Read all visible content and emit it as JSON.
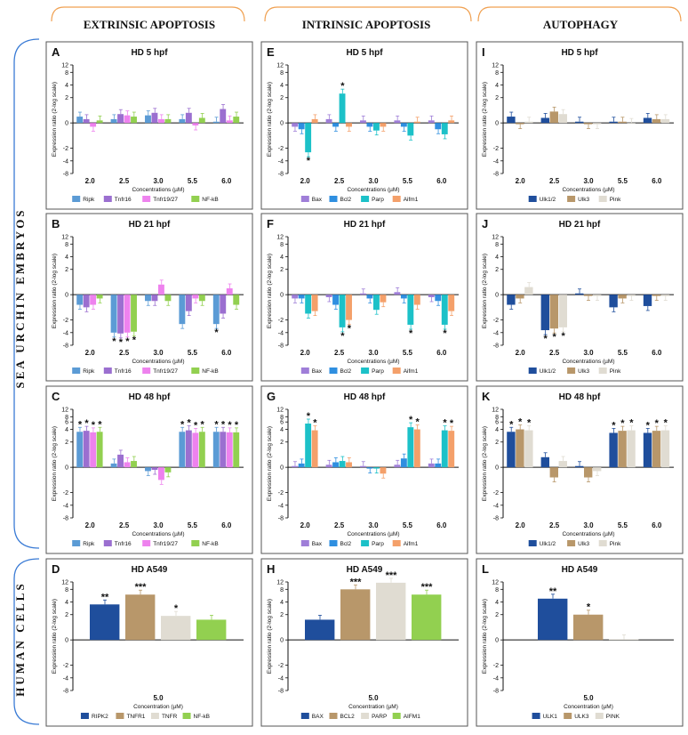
{
  "columns": [
    "EXTRINSIC APOPTOSIS",
    "INTRINSIC APOPTOSIS",
    "AUTOPHAGY"
  ],
  "rows": [
    "SEA URCHIN EMBRYOS",
    "HUMAN CELLS"
  ],
  "colors": {
    "Ripk": "#5b9bd5",
    "Tnfr16": "#9b6fd0",
    "Tnfr19/27": "#ee82ee",
    "NF-kB": "#92d050",
    "Bax": "#9f7ed8",
    "Bcl2": "#2f8fe0",
    "Parp": "#1cc1c8",
    "Aifm1": "#f4a06a",
    "Ulk1/2": "#1f4e9c",
    "Ulk3": "#b8976a",
    "Pink": "#e0dcd2"
  },
  "chart_data": [
    {
      "id": "A",
      "type": "bar",
      "title": "HD 5 hpf",
      "xlabel": "Concentrations (µM)",
      "ylabel": "Expression ratio (2-log scale)",
      "categories": [
        "2.0",
        "2.5",
        "3.0",
        "5.5",
        "6.0"
      ],
      "ylim": [
        -8,
        12
      ],
      "yticks": [
        "12",
        "8",
        "4",
        "2",
        "0",
        "-2",
        "-4",
        "-8"
      ],
      "series": [
        {
          "name": "Ripk",
          "values": [
            0.5,
            0.3,
            0.6,
            0.3,
            0.1
          ]
        },
        {
          "name": "Tnfr16",
          "values": [
            0.3,
            0.7,
            0.8,
            0.8,
            1.1
          ]
        },
        {
          "name": "Tnfr19/27",
          "values": [
            -0.3,
            0.6,
            0.3,
            -0.2,
            0.2
          ]
        },
        {
          "name": "NF-kB",
          "values": [
            0.2,
            0.5,
            0.3,
            0.4,
            0.5
          ]
        }
      ],
      "stars": []
    },
    {
      "id": "E",
      "type": "bar",
      "title": "HD 5 hpf",
      "xlabel": "Concentrations (µM)",
      "ylabel": "Expression ratio (2-log scale)",
      "categories": [
        "2.0",
        "2.5",
        "3.0",
        "5.5",
        "6.0"
      ],
      "ylim": [
        -8,
        12
      ],
      "yticks": [
        "12",
        "8",
        "4",
        "2",
        "0",
        "-2",
        "-4",
        "-8"
      ],
      "series": [
        {
          "name": "Bax",
          "values": [
            -0.3,
            0.3,
            0.2,
            0.2,
            0.2
          ]
        },
        {
          "name": "Bcl2",
          "values": [
            -0.5,
            -0.3,
            -0.3,
            -0.3,
            -0.5
          ]
        },
        {
          "name": "Parp",
          "values": [
            -2.5,
            2.5,
            -0.6,
            -1.0,
            -0.9
          ]
        },
        {
          "name": "Aifm1",
          "values": [
            0.3,
            -0.3,
            -0.3,
            0.1,
            0.2
          ]
        }
      ],
      "stars": [
        {
          "group": 0,
          "series": 2,
          "text": "*"
        },
        {
          "group": 1,
          "series": 2,
          "text": "*"
        }
      ]
    },
    {
      "id": "I",
      "type": "bar",
      "title": "HD 5 hpf",
      "xlabel": "Concentrations (µM)",
      "ylabel": "Expression ratio (2-log scale)",
      "categories": [
        "2.0",
        "2.5",
        "3.0",
        "5.5",
        "6.0"
      ],
      "ylim": [
        -8,
        12
      ],
      "yticks": [
        "12",
        "8",
        "4",
        "2",
        "0",
        "-2",
        "-4",
        "-8"
      ],
      "series": [
        {
          "name": "Ulk1/2",
          "values": [
            0.5,
            0.4,
            0.1,
            0.1,
            0.4
          ]
        },
        {
          "name": "Ulk3",
          "values": [
            -0.1,
            0.9,
            -0.1,
            0.1,
            0.3
          ]
        },
        {
          "name": "Pink",
          "values": [
            0.1,
            0.7,
            -0.1,
            0.0,
            0.3
          ]
        }
      ],
      "stars": []
    },
    {
      "id": "B",
      "type": "bar",
      "title": "HD 21 hpf",
      "xlabel": "Concentrations (µM)",
      "ylabel": "Expression ratio (2-log scale)",
      "categories": [
        "2.0",
        "2.5",
        "3.0",
        "5.5",
        "6.0"
      ],
      "ylim": [
        -8,
        12
      ],
      "yticks": [
        "12",
        "8",
        "4",
        "2",
        "0",
        "-2",
        "-4",
        "-8"
      ],
      "series": [
        {
          "name": "Ripk",
          "values": [
            -0.8,
            -4.0,
            -0.5,
            -2.5,
            -2.5
          ]
        },
        {
          "name": "Tnfr16",
          "values": [
            -1.0,
            -4.2,
            -0.5,
            -1.3,
            -1.5
          ]
        },
        {
          "name": "Tnfr19/27",
          "values": [
            -0.8,
            -4.0,
            0.8,
            -0.3,
            0.5
          ]
        },
        {
          "name": "NF-kB",
          "values": [
            -0.3,
            -3.8,
            -0.5,
            -0.5,
            -0.8
          ]
        }
      ],
      "stars": [
        {
          "group": 1,
          "series": 0,
          "text": "*"
        },
        {
          "group": 1,
          "series": 1,
          "text": "*"
        },
        {
          "group": 1,
          "series": 2,
          "text": "*"
        },
        {
          "group": 1,
          "series": 3,
          "text": "*"
        },
        {
          "group": 4,
          "series": 0,
          "text": "*"
        }
      ]
    },
    {
      "id": "F",
      "type": "bar",
      "title": "HD 21 hpf",
      "xlabel": "Concentrations (µM)",
      "ylabel": "Expression ratio (2-log scale)",
      "categories": [
        "2.0",
        "2.5",
        "3.0",
        "5.5",
        "6.0"
      ],
      "ylim": [
        -8,
        12
      ],
      "yticks": [
        "12",
        "8",
        "4",
        "2",
        "0",
        "-2",
        "-4",
        "-8"
      ],
      "series": [
        {
          "name": "Bax",
          "values": [
            -0.3,
            -0.2,
            0.1,
            0.2,
            -0.2
          ]
        },
        {
          "name": "Bcl2",
          "values": [
            -0.3,
            -0.8,
            -0.3,
            -0.3,
            -0.5
          ]
        },
        {
          "name": "Parp",
          "values": [
            -1.5,
            -3.0,
            -1.2,
            -2.6,
            -2.6
          ]
        },
        {
          "name": "Aifm1",
          "values": [
            -1.3,
            -2.0,
            -0.6,
            -0.8,
            -1.3
          ]
        }
      ],
      "stars": [
        {
          "group": 1,
          "series": 2,
          "text": "*"
        },
        {
          "group": 1,
          "series": 3,
          "text": "*"
        },
        {
          "group": 3,
          "series": 2,
          "text": "*"
        },
        {
          "group": 4,
          "series": 2,
          "text": "*"
        }
      ]
    },
    {
      "id": "J",
      "type": "bar",
      "title": "HD 21 hpf",
      "xlabel": "Concentrations (µM)",
      "ylabel": "Expression ratio (2-log scale)",
      "categories": [
        "2.0",
        "2.5",
        "3.0",
        "5.5",
        "6.0"
      ],
      "ylim": [
        -8,
        12
      ],
      "yticks": [
        "12",
        "8",
        "4",
        "2",
        "0",
        "-2",
        "-4",
        "-8"
      ],
      "series": [
        {
          "name": "Ulk1/2",
          "values": [
            -0.8,
            -3.5,
            0.1,
            -1.0,
            -0.9
          ]
        },
        {
          "name": "Ulk3",
          "values": [
            -0.3,
            -3.2,
            -0.1,
            -0.3,
            -0.1
          ]
        },
        {
          "name": "Pink",
          "values": [
            0.6,
            -3.0,
            -0.1,
            -0.1,
            -0.1
          ]
        }
      ],
      "stars": [
        {
          "group": 1,
          "series": 0,
          "text": "*"
        },
        {
          "group": 1,
          "series": 1,
          "text": "*"
        },
        {
          "group": 1,
          "series": 2,
          "text": "*"
        }
      ]
    },
    {
      "id": "C",
      "type": "bar",
      "title": "HD 48 hpf",
      "xlabel": "Concentrations (µM)",
      "ylabel": "Expression ratio (2-log scale)",
      "categories": [
        "2.0",
        "2.5",
        "3.0",
        "5.5",
        "6.0"
      ],
      "ylim": [
        -8,
        12
      ],
      "yticks": [
        "12",
        "8",
        "6",
        "4",
        "2",
        "0",
        "-2",
        "-4",
        "-8"
      ],
      "series": [
        {
          "name": "Ripk",
          "values": [
            3.5,
            0.3,
            -0.3,
            3.5,
            3.5
          ]
        },
        {
          "name": "Tnfr16",
          "values": [
            3.7,
            1.0,
            -0.2,
            3.8,
            3.5
          ]
        },
        {
          "name": "Tnfr19/27",
          "values": [
            3.4,
            0.4,
            -1.0,
            3.3,
            3.4
          ]
        },
        {
          "name": "NF-kB",
          "values": [
            3.5,
            0.5,
            -0.4,
            3.5,
            3.4
          ]
        }
      ],
      "stars": [
        {
          "group": 0,
          "series": 0,
          "text": "*"
        },
        {
          "group": 0,
          "series": 1,
          "text": "*"
        },
        {
          "group": 0,
          "series": 2,
          "text": "*"
        },
        {
          "group": 0,
          "series": 3,
          "text": "*"
        },
        {
          "group": 3,
          "series": 0,
          "text": "*"
        },
        {
          "group": 3,
          "series": 1,
          "text": "*"
        },
        {
          "group": 3,
          "series": 2,
          "text": "*"
        },
        {
          "group": 3,
          "series": 3,
          "text": "*"
        },
        {
          "group": 4,
          "series": 0,
          "text": "*"
        },
        {
          "group": 4,
          "series": 1,
          "text": "*"
        },
        {
          "group": 4,
          "series": 2,
          "text": "*"
        },
        {
          "group": 4,
          "series": 3,
          "text": "*"
        }
      ]
    },
    {
      "id": "G",
      "type": "bar",
      "title": "HD 48 hpf",
      "xlabel": "Concentrations (µM)",
      "ylabel": "Expression ratio (2-log scale)",
      "categories": [
        "2.0",
        "2.5",
        "3.0",
        "5.5",
        "6.0"
      ],
      "ylim": [
        -8,
        12
      ],
      "yticks": [
        "12",
        "8",
        "6",
        "4",
        "2",
        "0",
        "-2",
        "-4",
        "-8"
      ],
      "series": [
        {
          "name": "Bax",
          "values": [
            0.1,
            0.2,
            0.1,
            0.2,
            0.3
          ]
        },
        {
          "name": "Bcl2",
          "values": [
            0.3,
            0.4,
            -0.1,
            0.7,
            0.3
          ]
        },
        {
          "name": "Parp",
          "values": [
            5.5,
            0.5,
            -0.1,
            4.5,
            3.8
          ]
        },
        {
          "name": "Aifm1",
          "values": [
            3.8,
            0.4,
            -0.5,
            4.0,
            3.7
          ]
        }
      ],
      "stars": [
        {
          "group": 0,
          "series": 2,
          "text": "*"
        },
        {
          "group": 0,
          "series": 3,
          "text": "*"
        },
        {
          "group": 3,
          "series": 2,
          "text": "*"
        },
        {
          "group": 3,
          "series": 3,
          "text": "*"
        },
        {
          "group": 4,
          "series": 2,
          "text": "*"
        },
        {
          "group": 4,
          "series": 3,
          "text": "*"
        }
      ]
    },
    {
      "id": "K",
      "type": "bar",
      "title": "HD 48 hpf",
      "xlabel": "Concentrations (µM)",
      "ylabel": "Expression ratio (2-log scale)",
      "categories": [
        "2.0",
        "2.5",
        "3.0",
        "5.5",
        "6.0"
      ],
      "ylim": [
        -8,
        12
      ],
      "yticks": [
        "12",
        "8",
        "6",
        "4",
        "2",
        "0",
        "-2",
        "-4",
        "-8"
      ],
      "series": [
        {
          "name": "Ulk1/2",
          "values": [
            3.5,
            0.8,
            0.1,
            3.3,
            3.3
          ]
        },
        {
          "name": "Ulk3",
          "values": [
            4.0,
            -0.8,
            -0.8,
            3.7,
            3.7
          ]
        },
        {
          "name": "Pink",
          "values": [
            3.8,
            0.5,
            -0.3,
            3.8,
            3.8
          ]
        }
      ],
      "stars": [
        {
          "group": 0,
          "series": 0,
          "text": "*"
        },
        {
          "group": 0,
          "series": 1,
          "text": "*"
        },
        {
          "group": 0,
          "series": 2,
          "text": "*"
        },
        {
          "group": 3,
          "series": 0,
          "text": "*"
        },
        {
          "group": 3,
          "series": 1,
          "text": "*"
        },
        {
          "group": 3,
          "series": 2,
          "text": "*"
        },
        {
          "group": 4,
          "series": 0,
          "text": "*"
        },
        {
          "group": 4,
          "series": 1,
          "text": "*"
        },
        {
          "group": 4,
          "series": 2,
          "text": "*"
        }
      ]
    },
    {
      "id": "D",
      "type": "bar",
      "title": "HD A549",
      "xlabel": "Concentration (µM)",
      "ylabel": "Expression ratio (2-log scale)",
      "categories": [
        "5.0"
      ],
      "ylim": [
        -8,
        12
      ],
      "yticks": [
        "12",
        "8",
        "4",
        "2",
        "0",
        "-2",
        "-4",
        "-8"
      ],
      "series": [
        {
          "name": "RIPK2",
          "values": [
            3.5
          ]
        },
        {
          "name": "TNFR1",
          "values": [
            6.0
          ]
        },
        {
          "name": "TNFR",
          "values": [
            1.9
          ]
        },
        {
          "name": "NF-kB",
          "values": [
            1.6
          ]
        }
      ],
      "stars": [
        {
          "group": 0,
          "series": 0,
          "text": "**"
        },
        {
          "group": 0,
          "series": 1,
          "text": "***"
        },
        {
          "group": 0,
          "series": 2,
          "text": "*"
        }
      ]
    },
    {
      "id": "H",
      "type": "bar",
      "title": "HD A549",
      "xlabel": "Concentration (µM)",
      "ylabel": "Expression ratio (2-log scale)",
      "categories": [
        "5.0"
      ],
      "ylim": [
        -8,
        12
      ],
      "yticks": [
        "12",
        "8",
        "4",
        "2",
        "0",
        "-2",
        "-4",
        "-8"
      ],
      "series": [
        {
          "name": "BAX",
          "values": [
            1.6
          ]
        },
        {
          "name": "BCL2",
          "values": [
            8.0
          ]
        },
        {
          "name": "PARP",
          "values": [
            11.5
          ]
        },
        {
          "name": "AIFM1",
          "values": [
            6.0
          ]
        }
      ],
      "stars": [
        {
          "group": 0,
          "series": 1,
          "text": "***"
        },
        {
          "group": 0,
          "series": 2,
          "text": "***"
        },
        {
          "group": 0,
          "series": 3,
          "text": "***"
        }
      ]
    },
    {
      "id": "L",
      "type": "bar",
      "title": "HD A549",
      "xlabel": "Concentration (µM)",
      "ylabel": "Expression ratio (2-log scale)",
      "categories": [
        "5.0"
      ],
      "ylim": [
        -8,
        12
      ],
      "yticks": [
        "12",
        "8",
        "4",
        "2",
        "0",
        "-2",
        "-4",
        "-8"
      ],
      "series": [
        {
          "name": "ULK1",
          "values": [
            4.8
          ]
        },
        {
          "name": "ULK3",
          "values": [
            2.0
          ]
        },
        {
          "name": "PINK",
          "values": [
            0.05
          ]
        }
      ],
      "stars": [
        {
          "group": 0,
          "series": 0,
          "text": "**"
        },
        {
          "group": 0,
          "series": 1,
          "text": "*"
        }
      ]
    }
  ]
}
